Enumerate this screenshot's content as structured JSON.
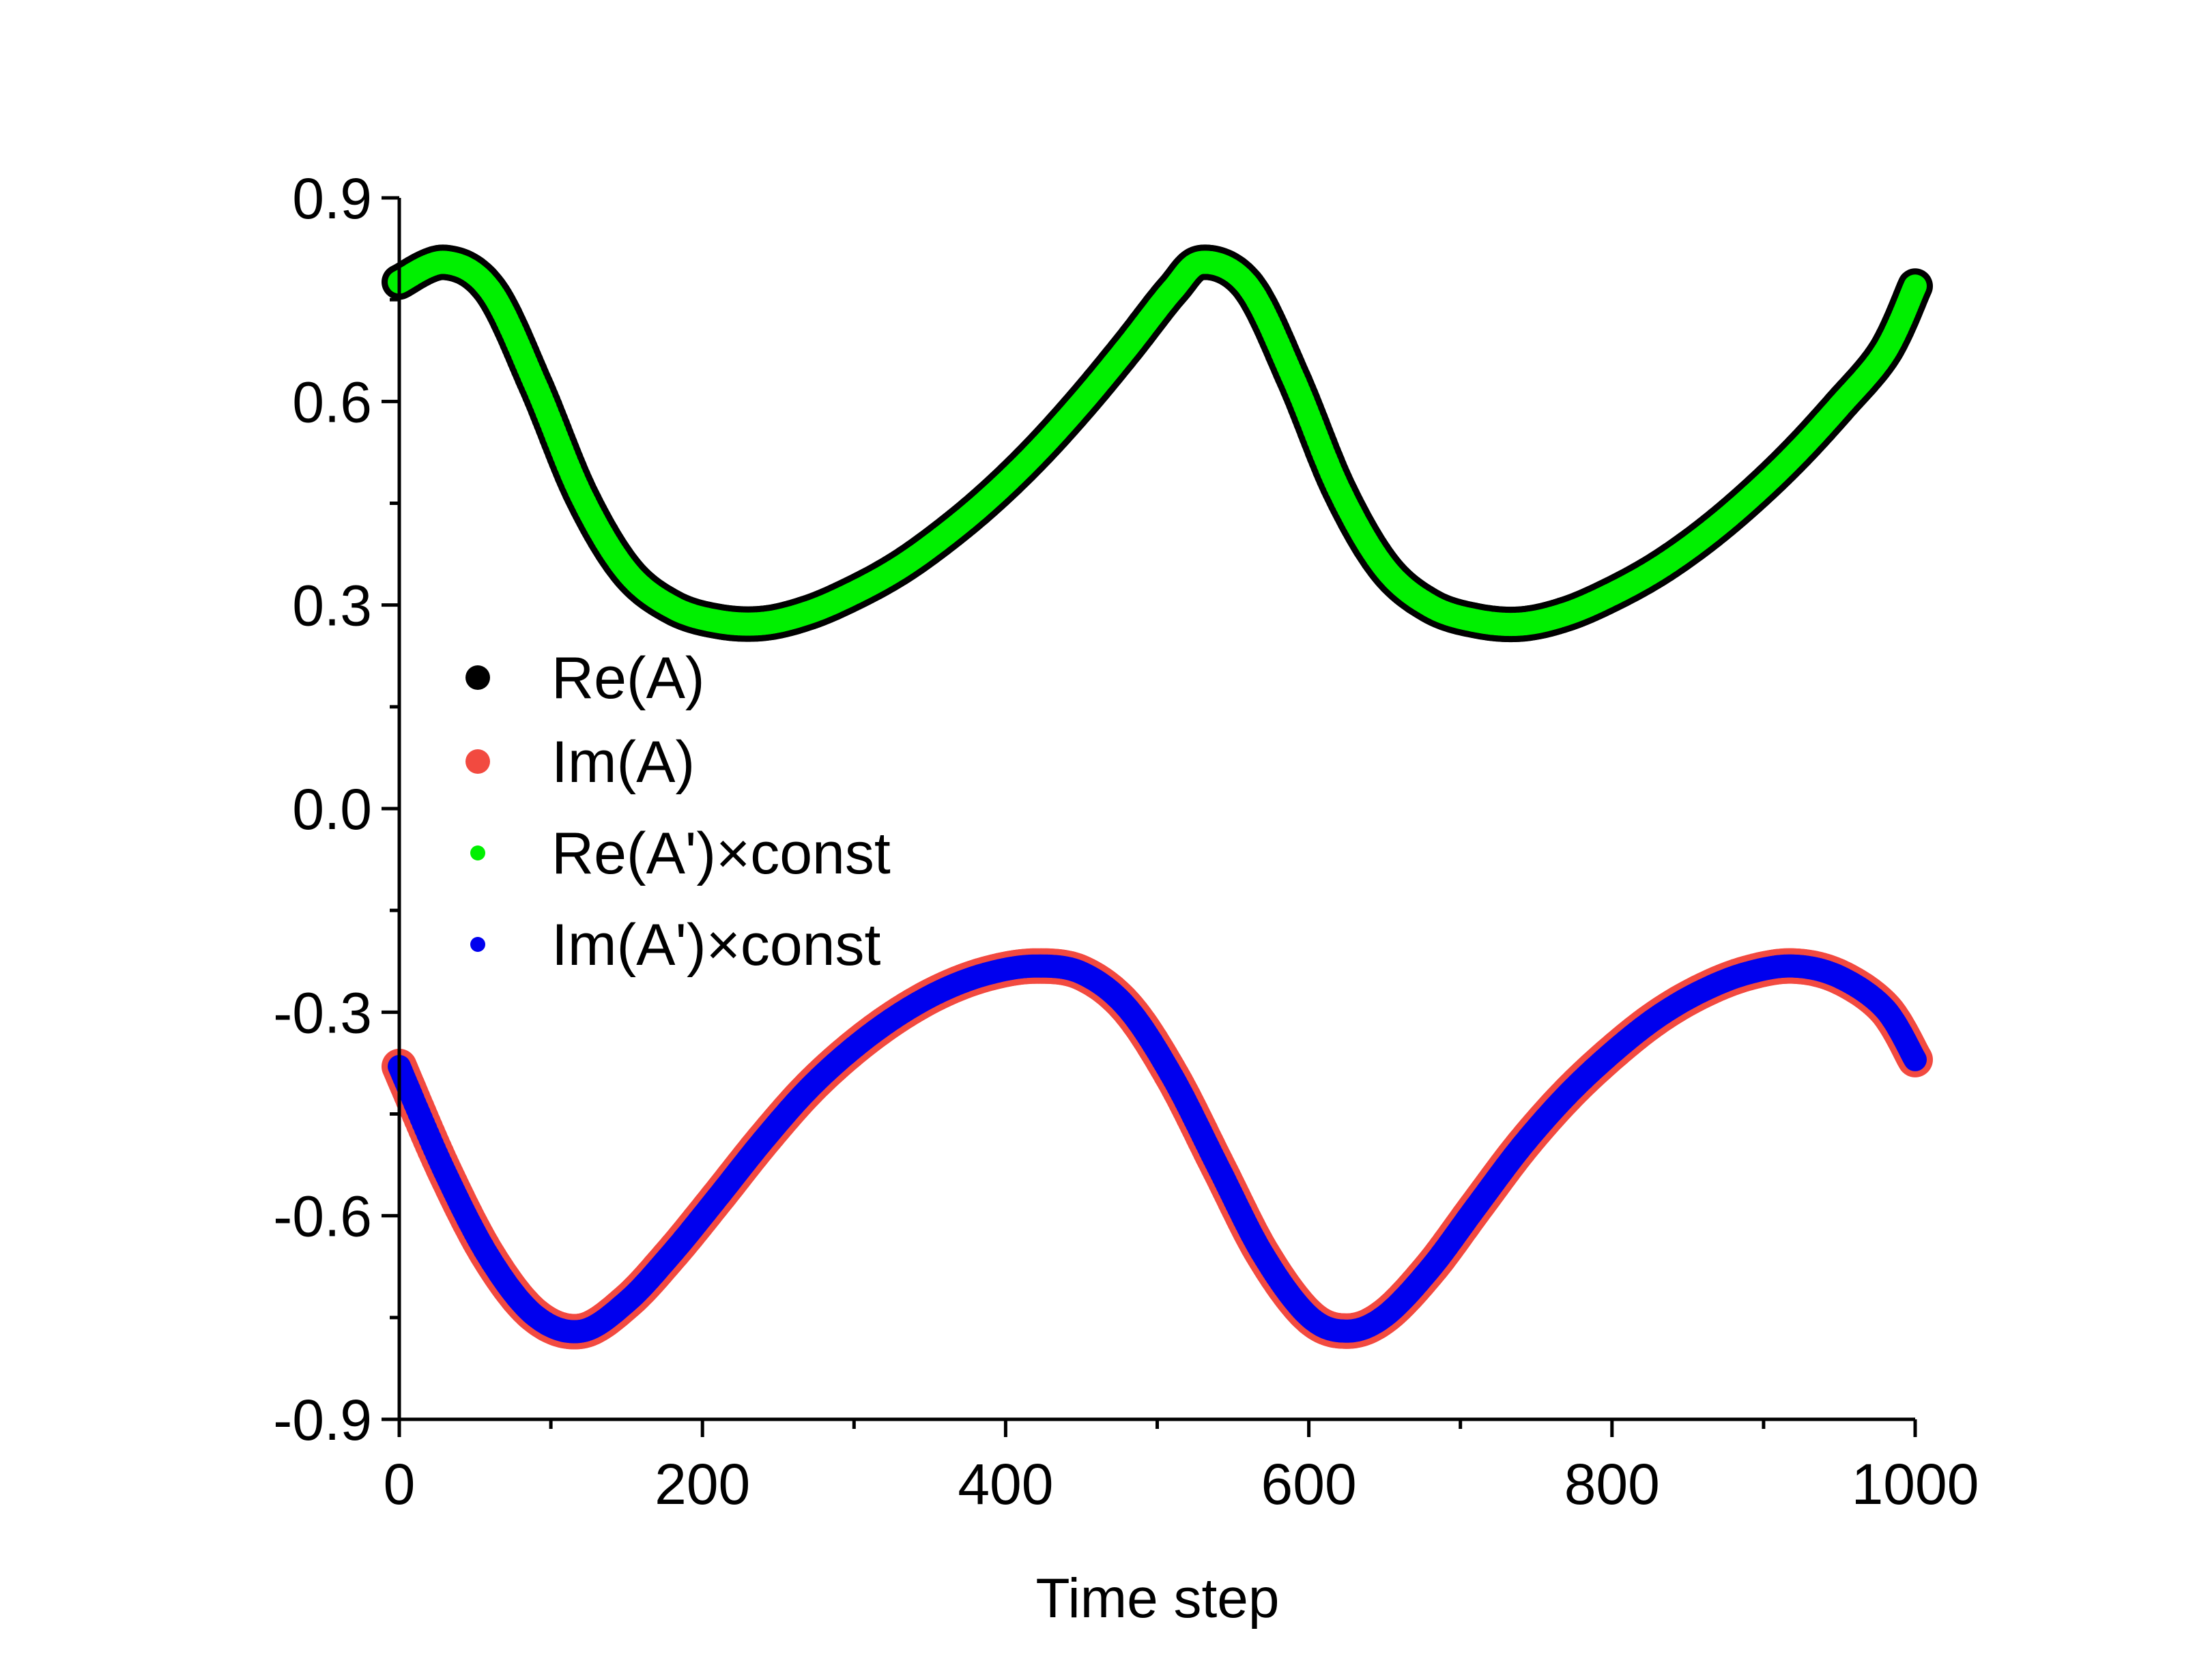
{
  "chart_data": {
    "type": "scatter",
    "title": "",
    "xlabel": "Time step",
    "ylabel": "",
    "xlim": [
      0,
      1000
    ],
    "ylim": [
      -0.9,
      0.9
    ],
    "x_ticks": [
      0,
      200,
      400,
      600,
      800,
      1000
    ],
    "x_tick_labels": [
      "0",
      "200",
      "400",
      "600",
      "800",
      "1000"
    ],
    "y_ticks": [
      0.9,
      0.6,
      0.3,
      0.0,
      -0.3,
      -0.6,
      -0.9
    ],
    "y_tick_labels": [
      "0.9",
      "0.6",
      "0.3",
      "0.0",
      "-0.3",
      "-0.6",
      "-0.9"
    ],
    "legend_position": "center-left",
    "series": [
      {
        "name": "Re(A)",
        "color": "#000000",
        "marker": "large-dot",
        "x": [
          0,
          30,
          60,
          90,
          120,
          150,
          180,
          210,
          240,
          270,
          300,
          330,
          360,
          390,
          420,
          450,
          480,
          510,
          530,
          560,
          590,
          620,
          650,
          680,
          710,
          740,
          770,
          800,
          830,
          860,
          890,
          920,
          950,
          980,
          1000
        ],
        "values": [
          0.776,
          0.805,
          0.764,
          0.624,
          0.462,
          0.35,
          0.297,
          0.276,
          0.273,
          0.289,
          0.318,
          0.355,
          0.403,
          0.459,
          0.524,
          0.598,
          0.679,
          0.764,
          0.805,
          0.77,
          0.633,
          0.47,
          0.355,
          0.299,
          0.277,
          0.272,
          0.287,
          0.316,
          0.353,
          0.4,
          0.456,
          0.52,
          0.593,
          0.673,
          0.77
        ]
      },
      {
        "name": "Im(A)",
        "color": "#f24a40",
        "marker": "large-dot",
        "x": [
          0,
          30,
          60,
          90,
          120,
          150,
          180,
          210,
          240,
          270,
          300,
          330,
          360,
          390,
          420,
          450,
          480,
          510,
          540,
          570,
          600,
          625,
          650,
          680,
          710,
          740,
          770,
          800,
          830,
          860,
          890,
          920,
          950,
          980,
          1000
        ],
        "values": [
          -0.38,
          -0.535,
          -0.664,
          -0.748,
          -0.77,
          -0.727,
          -0.655,
          -0.573,
          -0.489,
          -0.413,
          -0.352,
          -0.303,
          -0.266,
          -0.242,
          -0.232,
          -0.242,
          -0.293,
          -0.395,
          -0.527,
          -0.658,
          -0.748,
          -0.77,
          -0.748,
          -0.678,
          -0.588,
          -0.499,
          -0.423,
          -0.36,
          -0.307,
          -0.268,
          -0.242,
          -0.232,
          -0.248,
          -0.295,
          -0.37
        ]
      },
      {
        "name": "Re(A')×const",
        "color": "#00f000",
        "marker": "small-dot",
        "x": [
          0,
          30,
          60,
          90,
          120,
          150,
          180,
          210,
          240,
          270,
          300,
          330,
          360,
          390,
          420,
          450,
          480,
          510,
          530,
          560,
          590,
          620,
          650,
          680,
          710,
          740,
          770,
          800,
          830,
          860,
          890,
          920,
          950,
          980,
          1000
        ],
        "values": [
          0.776,
          0.805,
          0.764,
          0.624,
          0.462,
          0.35,
          0.297,
          0.276,
          0.273,
          0.289,
          0.318,
          0.355,
          0.403,
          0.459,
          0.524,
          0.598,
          0.679,
          0.764,
          0.805,
          0.77,
          0.633,
          0.47,
          0.355,
          0.299,
          0.277,
          0.272,
          0.287,
          0.316,
          0.353,
          0.4,
          0.456,
          0.52,
          0.593,
          0.673,
          0.77
        ]
      },
      {
        "name": "Im(A')×const",
        "color": "#0000ee",
        "marker": "small-dot",
        "x": [
          0,
          30,
          60,
          90,
          120,
          150,
          180,
          210,
          240,
          270,
          300,
          330,
          360,
          390,
          420,
          450,
          480,
          510,
          540,
          570,
          600,
          625,
          650,
          680,
          710,
          740,
          770,
          800,
          830,
          860,
          890,
          920,
          950,
          980,
          1000
        ],
        "values": [
          -0.38,
          -0.535,
          -0.664,
          -0.748,
          -0.77,
          -0.727,
          -0.655,
          -0.573,
          -0.489,
          -0.413,
          -0.352,
          -0.303,
          -0.266,
          -0.242,
          -0.232,
          -0.242,
          -0.293,
          -0.395,
          -0.527,
          -0.658,
          -0.748,
          -0.77,
          -0.748,
          -0.678,
          -0.588,
          -0.499,
          -0.423,
          -0.36,
          -0.307,
          -0.268,
          -0.242,
          -0.232,
          -0.248,
          -0.295,
          -0.37
        ]
      }
    ]
  }
}
